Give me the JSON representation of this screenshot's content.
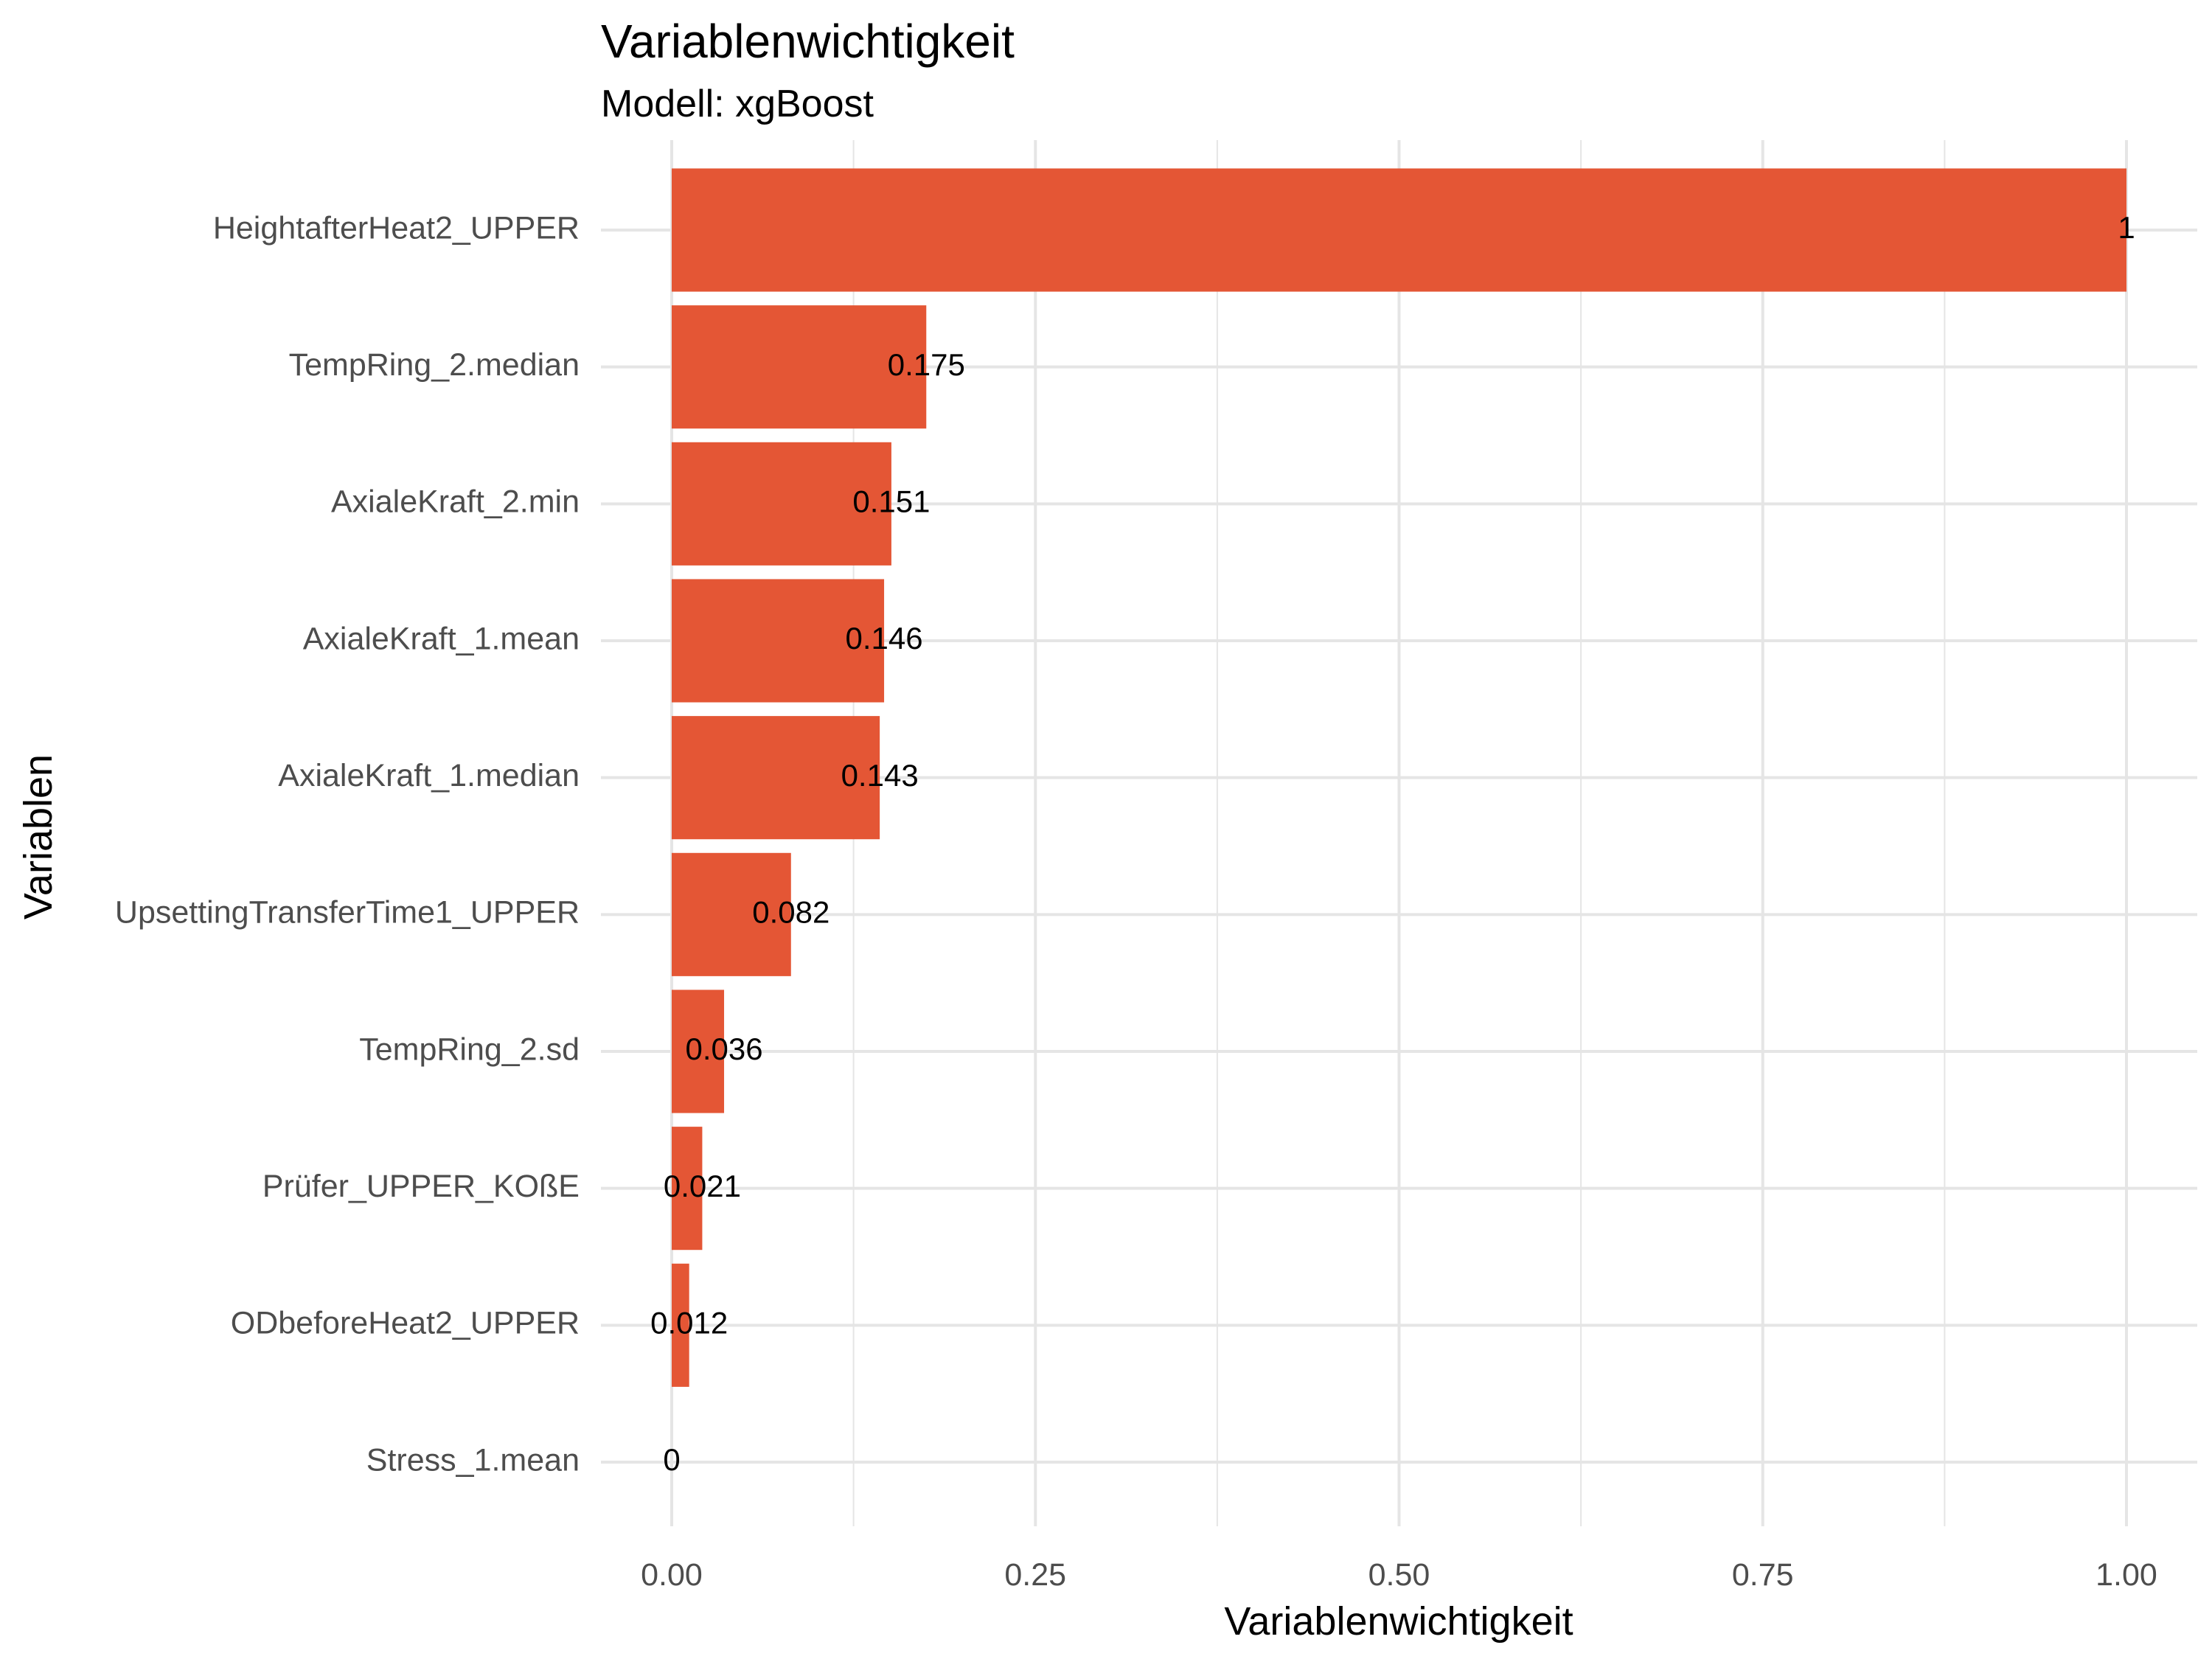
{
  "chart_data": {
    "type": "bar",
    "orientation": "horizontal",
    "title": "Variablenwichtigkeit",
    "subtitle": "Modell: xgBoost",
    "xlabel": "Variablenwichtigkeit",
    "ylabel": "Variablen",
    "xlim": [
      0,
      1
    ],
    "x_ticks": [
      "0.00",
      "0.25",
      "0.50",
      "0.75",
      "1.00"
    ],
    "x_tick_values": [
      0,
      0.25,
      0.5,
      0.75,
      1.0
    ],
    "grid": true,
    "categories": [
      "HeightafterHeat2_UPPER",
      "TempRing_2.median",
      "AxialeKraft_2.min",
      "AxialeKraft_1.mean",
      "AxialeKraft_1.median",
      "UpsettingTransferTime1_UPPER",
      "TempRing_2.sd",
      "Prüfer_UPPER_KOßE",
      "ODbeforeHeat2_UPPER",
      "Stress_1.mean"
    ],
    "values": [
      1,
      0.175,
      0.151,
      0.146,
      0.143,
      0.082,
      0.036,
      0.021,
      0.012,
      0
    ],
    "value_labels": [
      "1",
      "0.175",
      "0.151",
      "0.146",
      "0.143",
      "0.082",
      "0.036",
      "0.021",
      "0.012",
      "0"
    ],
    "bar_color": "#E45635",
    "grid_color": "#e5e5e5",
    "label_color": "#4d4d4d"
  }
}
